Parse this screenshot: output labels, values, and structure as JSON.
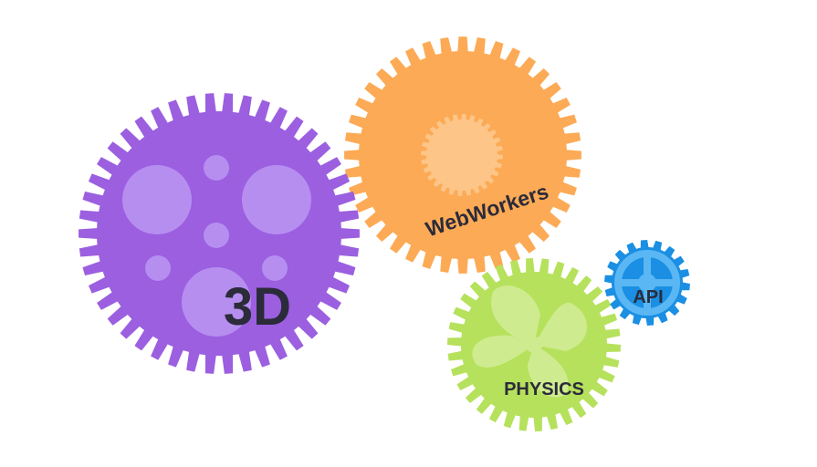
{
  "gears": {
    "threed": {
      "label": "3D",
      "color": "#9b5fe0",
      "accent": "#b68ef0",
      "icon": "3d-gear-icon"
    },
    "webworkers": {
      "label": "WebWorkers",
      "color": "#fcaa55",
      "accent": "#fdc587",
      "icon": "webworkers-gear-icon"
    },
    "physics": {
      "label": "PHYSICS",
      "color": "#b6e15c",
      "accent": "#cfeb8f",
      "icon": "physics-gear-icon"
    },
    "api": {
      "label": "API",
      "color": "#1a8fe3",
      "accent": "#5ab7f4",
      "icon": "api-gear-icon"
    }
  }
}
